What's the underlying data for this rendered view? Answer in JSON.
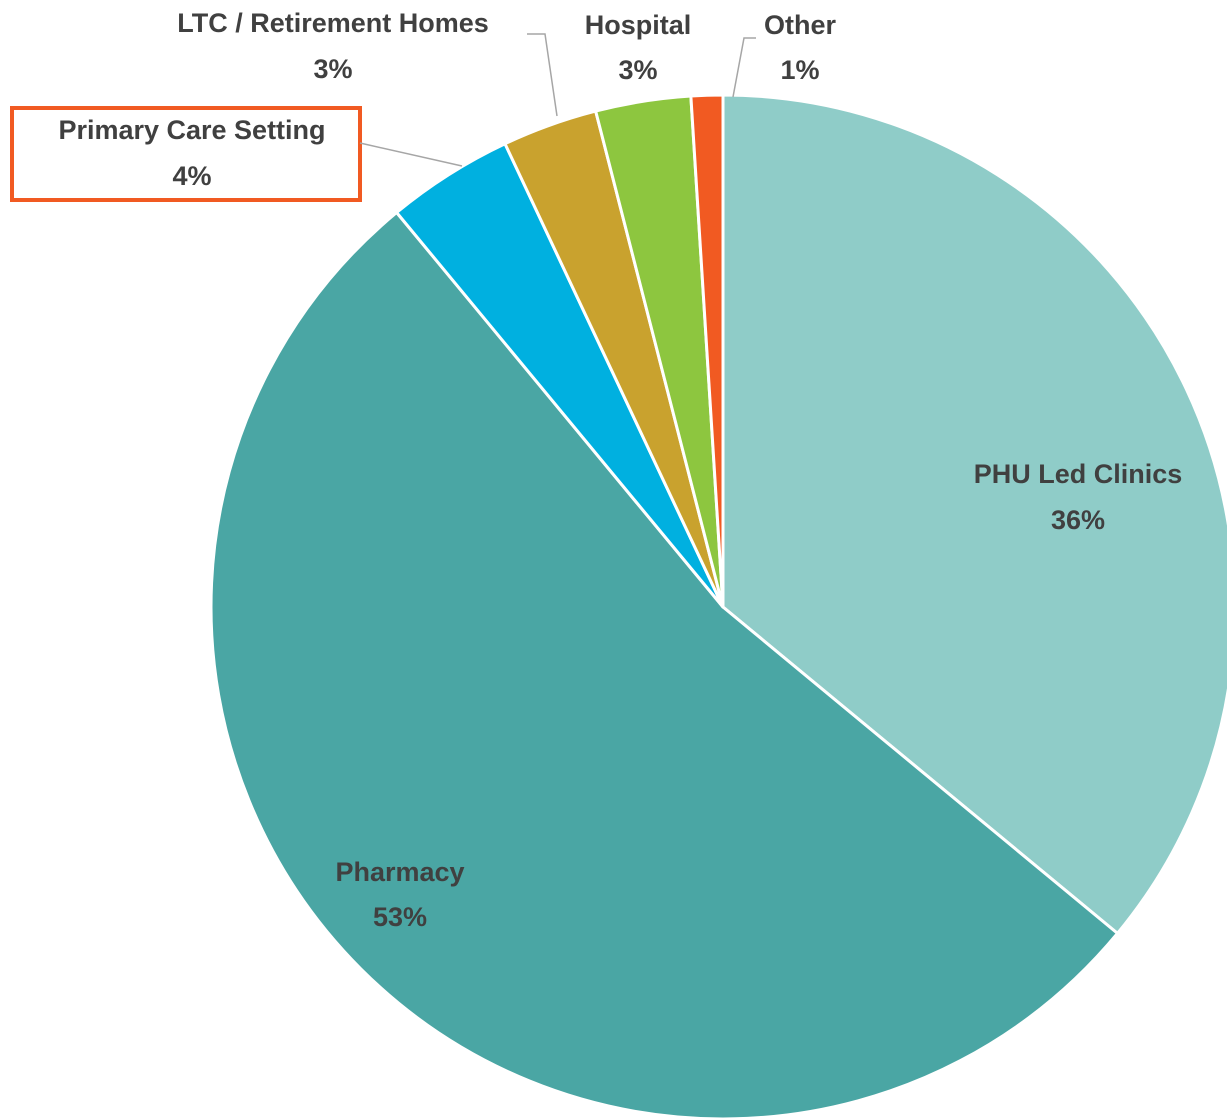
{
  "chart_data": {
    "type": "pie",
    "categories": [
      "PHU Led Clinics",
      "Pharmacy",
      "Primary Care Setting",
      "LTC / Retirement Homes",
      "Hospital",
      "Other"
    ],
    "values": [
      36,
      53,
      4,
      3,
      3,
      1
    ],
    "value_labels": [
      "36%",
      "53%",
      "4%",
      "3%",
      "3%",
      "1%"
    ],
    "colors": [
      "#8fccc8",
      "#4aa6a4",
      "#00b0e0",
      "#c9a22e",
      "#8dc63f",
      "#f15a22"
    ]
  }
}
